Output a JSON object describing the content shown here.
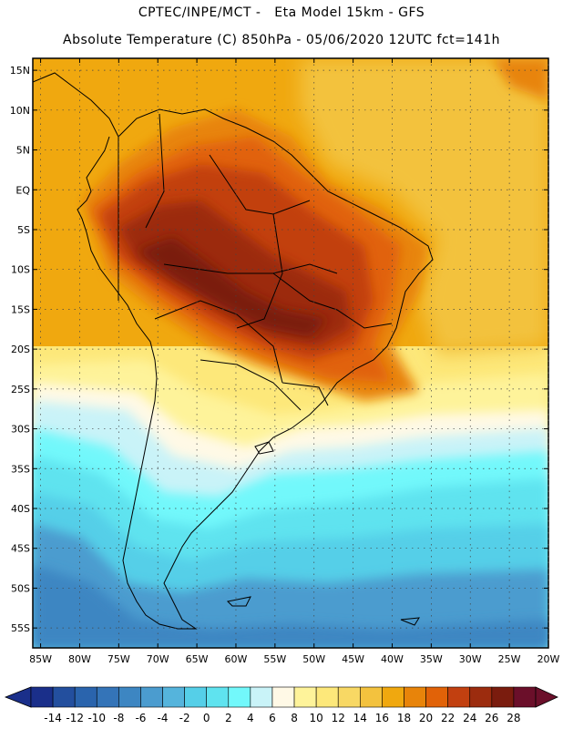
{
  "header": {
    "line1": "CPTEC/INPE/MCT -   Eta Model 15km - GFS",
    "line2": "Absolute Temperature (C) 850hPa - 05/06/2020 12UTC fct=141h"
  },
  "map": {
    "lat_labels": [
      "15N",
      "10N",
      "5N",
      "EQ",
      "5S",
      "10S",
      "15S",
      "20S",
      "25S",
      "30S",
      "35S",
      "40S",
      "45S",
      "50S",
      "55S"
    ],
    "lon_labels": [
      "85W",
      "80W",
      "75W",
      "70W",
      "65W",
      "60W",
      "55W",
      "50W",
      "45W",
      "40W",
      "35W",
      "30W",
      "25W",
      "20W"
    ],
    "lat_range": [
      -57.5,
      16.5
    ],
    "lon_range": [
      -86,
      -20
    ]
  },
  "colorbar": {
    "levels": [
      "-14",
      "-12",
      "-10",
      "-8",
      "-6",
      "-4",
      "-2",
      "0",
      "2",
      "4",
      "6",
      "8",
      "10",
      "12",
      "14",
      "16",
      "18",
      "20",
      "22",
      "24",
      "26",
      "28"
    ],
    "colors": [
      "#1a2f8a",
      "#234f9e",
      "#2a64ad",
      "#3474b8",
      "#3d86c2",
      "#4b9ccf",
      "#55b4dc",
      "#55cfe8",
      "#5fe3ef",
      "#72f8fb",
      "#c9f3f8",
      "#fff9e6",
      "#fef39a",
      "#fde87a",
      "#f8d864",
      "#f3c23e",
      "#f0a80f",
      "#e8840a",
      "#e16208",
      "#c24010",
      "#9c2c0e",
      "#7a1c0e",
      "#6b0f2a"
    ]
  }
}
